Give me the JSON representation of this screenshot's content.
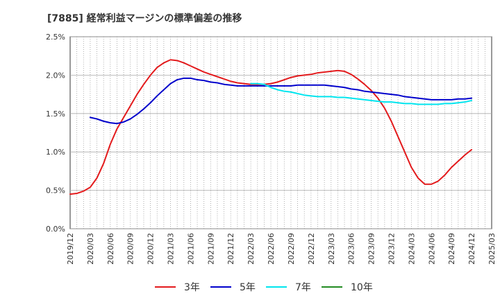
{
  "chart_data": {
    "type": "line",
    "title": "[7885]  経常利益マージンの標準偏差の推移",
    "xlabel": "",
    "ylabel": "",
    "ylim": [
      0,
      0.025
    ],
    "y_ticks": [
      {
        "value": 0,
        "label": "0.0%"
      },
      {
        "value": 0.005,
        "label": "0.5%"
      },
      {
        "value": 0.01,
        "label": "1.0%"
      },
      {
        "value": 0.015,
        "label": "1.5%"
      },
      {
        "value": 0.02,
        "label": "2.0%"
      },
      {
        "value": 0.025,
        "label": "2.5%"
      }
    ],
    "x_range": [
      "2019-12",
      "2025-03"
    ],
    "x_ticks": [
      "2019/12",
      "2020/03",
      "2020/06",
      "2020/09",
      "2020/12",
      "2021/03",
      "2021/06",
      "2021/09",
      "2021/12",
      "2022/03",
      "2022/06",
      "2022/09",
      "2022/12",
      "2023/03",
      "2023/06",
      "2023/09",
      "2023/12",
      "2024/03",
      "2024/06",
      "2024/09",
      "2024/12",
      "2025/03"
    ],
    "grid": true,
    "legend_position": "bottom",
    "series": [
      {
        "name": "3年",
        "color": "#e31a1c",
        "points": [
          [
            "2019-12",
            0.0045
          ],
          [
            "2020-01",
            0.0046
          ],
          [
            "2020-02",
            0.0049
          ],
          [
            "2020-03",
            0.0054
          ],
          [
            "2020-04",
            0.0066
          ],
          [
            "2020-05",
            0.0085
          ],
          [
            "2020-06",
            0.011
          ],
          [
            "2020-07",
            0.013
          ],
          [
            "2020-08",
            0.0145
          ],
          [
            "2020-09",
            0.016
          ],
          [
            "2020-10",
            0.0175
          ],
          [
            "2020-11",
            0.0188
          ],
          [
            "2020-12",
            0.02
          ],
          [
            "2021-01",
            0.021
          ],
          [
            "2021-02",
            0.0216
          ],
          [
            "2021-03",
            0.022
          ],
          [
            "2021-04",
            0.0219
          ],
          [
            "2021-05",
            0.0216
          ],
          [
            "2021-06",
            0.0212
          ],
          [
            "2021-07",
            0.0208
          ],
          [
            "2021-08",
            0.0204
          ],
          [
            "2021-09",
            0.0201
          ],
          [
            "2021-10",
            0.0198
          ],
          [
            "2021-11",
            0.0195
          ],
          [
            "2021-12",
            0.0192
          ],
          [
            "2022-01",
            0.019
          ],
          [
            "2022-02",
            0.0189
          ],
          [
            "2022-03",
            0.0188
          ],
          [
            "2022-04",
            0.0188
          ],
          [
            "2022-05",
            0.0188
          ],
          [
            "2022-06",
            0.0189
          ],
          [
            "2022-07",
            0.0191
          ],
          [
            "2022-08",
            0.0194
          ],
          [
            "2022-09",
            0.0197
          ],
          [
            "2022-10",
            0.0199
          ],
          [
            "2022-11",
            0.02
          ],
          [
            "2022-12",
            0.0201
          ],
          [
            "2023-01",
            0.0203
          ],
          [
            "2023-02",
            0.0204
          ],
          [
            "2023-03",
            0.0205
          ],
          [
            "2023-04",
            0.0206
          ],
          [
            "2023-05",
            0.0205
          ],
          [
            "2023-06",
            0.0201
          ],
          [
            "2023-07",
            0.0195
          ],
          [
            "2023-08",
            0.0188
          ],
          [
            "2023-09",
            0.018
          ],
          [
            "2023-10",
            0.017
          ],
          [
            "2023-11",
            0.0157
          ],
          [
            "2023-12",
            0.014
          ],
          [
            "2024-01",
            0.012
          ],
          [
            "2024-02",
            0.01
          ],
          [
            "2024-03",
            0.008
          ],
          [
            "2024-04",
            0.0066
          ],
          [
            "2024-05",
            0.0058
          ],
          [
            "2024-06",
            0.0058
          ],
          [
            "2024-07",
            0.0062
          ],
          [
            "2024-08",
            0.007
          ],
          [
            "2024-09",
            0.008
          ],
          [
            "2024-10",
            0.0088
          ],
          [
            "2024-11",
            0.0096
          ],
          [
            "2024-12",
            0.0103
          ]
        ]
      },
      {
        "name": "5年",
        "color": "#0000cc",
        "points": [
          [
            "2020-03",
            0.0145
          ],
          [
            "2020-04",
            0.0143
          ],
          [
            "2020-05",
            0.014
          ],
          [
            "2020-06",
            0.0138
          ],
          [
            "2020-07",
            0.0137
          ],
          [
            "2020-08",
            0.0139
          ],
          [
            "2020-09",
            0.0143
          ],
          [
            "2020-10",
            0.0149
          ],
          [
            "2020-11",
            0.0156
          ],
          [
            "2020-12",
            0.0164
          ],
          [
            "2021-01",
            0.0173
          ],
          [
            "2021-02",
            0.0181
          ],
          [
            "2021-03",
            0.0189
          ],
          [
            "2021-04",
            0.0194
          ],
          [
            "2021-05",
            0.0196
          ],
          [
            "2021-06",
            0.0196
          ],
          [
            "2021-07",
            0.0194
          ],
          [
            "2021-08",
            0.0193
          ],
          [
            "2021-09",
            0.0191
          ],
          [
            "2021-10",
            0.019
          ],
          [
            "2021-11",
            0.0188
          ],
          [
            "2021-12",
            0.0187
          ],
          [
            "2022-01",
            0.0186
          ],
          [
            "2022-02",
            0.0186
          ],
          [
            "2022-03",
            0.0186
          ],
          [
            "2022-04",
            0.0186
          ],
          [
            "2022-05",
            0.0186
          ],
          [
            "2022-06",
            0.0186
          ],
          [
            "2022-07",
            0.0186
          ],
          [
            "2022-08",
            0.0186
          ],
          [
            "2022-09",
            0.0186
          ],
          [
            "2022-10",
            0.0187
          ],
          [
            "2022-11",
            0.0187
          ],
          [
            "2022-12",
            0.0187
          ],
          [
            "2023-01",
            0.0187
          ],
          [
            "2023-02",
            0.0187
          ],
          [
            "2023-03",
            0.0186
          ],
          [
            "2023-04",
            0.0185
          ],
          [
            "2023-05",
            0.0184
          ],
          [
            "2023-06",
            0.0182
          ],
          [
            "2023-07",
            0.0181
          ],
          [
            "2023-08",
            0.0179
          ],
          [
            "2023-09",
            0.0178
          ],
          [
            "2023-10",
            0.0177
          ],
          [
            "2023-11",
            0.0176
          ],
          [
            "2023-12",
            0.0175
          ],
          [
            "2024-01",
            0.0174
          ],
          [
            "2024-02",
            0.0172
          ],
          [
            "2024-03",
            0.0171
          ],
          [
            "2024-04",
            0.017
          ],
          [
            "2024-05",
            0.0169
          ],
          [
            "2024-06",
            0.0168
          ],
          [
            "2024-07",
            0.0168
          ],
          [
            "2024-08",
            0.0168
          ],
          [
            "2024-09",
            0.0168
          ],
          [
            "2024-10",
            0.0169
          ],
          [
            "2024-11",
            0.0169
          ],
          [
            "2024-12",
            0.017
          ]
        ]
      },
      {
        "name": "7年",
        "color": "#00e5ee",
        "points": [
          [
            "2022-03",
            0.0189
          ],
          [
            "2022-04",
            0.0189
          ],
          [
            "2022-05",
            0.0188
          ],
          [
            "2022-06",
            0.0184
          ],
          [
            "2022-07",
            0.0181
          ],
          [
            "2022-08",
            0.0179
          ],
          [
            "2022-09",
            0.0178
          ],
          [
            "2022-10",
            0.0176
          ],
          [
            "2022-11",
            0.0174
          ],
          [
            "2022-12",
            0.0173
          ],
          [
            "2023-01",
            0.0172
          ],
          [
            "2023-02",
            0.0172
          ],
          [
            "2023-03",
            0.0172
          ],
          [
            "2023-04",
            0.0171
          ],
          [
            "2023-05",
            0.0171
          ],
          [
            "2023-06",
            0.017
          ],
          [
            "2023-07",
            0.0169
          ],
          [
            "2023-08",
            0.0168
          ],
          [
            "2023-09",
            0.0167
          ],
          [
            "2023-10",
            0.0166
          ],
          [
            "2023-11",
            0.0165
          ],
          [
            "2023-12",
            0.0165
          ],
          [
            "2024-01",
            0.0164
          ],
          [
            "2024-02",
            0.0163
          ],
          [
            "2024-03",
            0.0163
          ],
          [
            "2024-04",
            0.0162
          ],
          [
            "2024-05",
            0.0162
          ],
          [
            "2024-06",
            0.0162
          ],
          [
            "2024-07",
            0.0162
          ],
          [
            "2024-08",
            0.0163
          ],
          [
            "2024-09",
            0.0163
          ],
          [
            "2024-10",
            0.0164
          ],
          [
            "2024-11",
            0.0165
          ],
          [
            "2024-12",
            0.0167
          ]
        ]
      },
      {
        "name": "10年",
        "color": "#228b22",
        "points": []
      }
    ]
  }
}
